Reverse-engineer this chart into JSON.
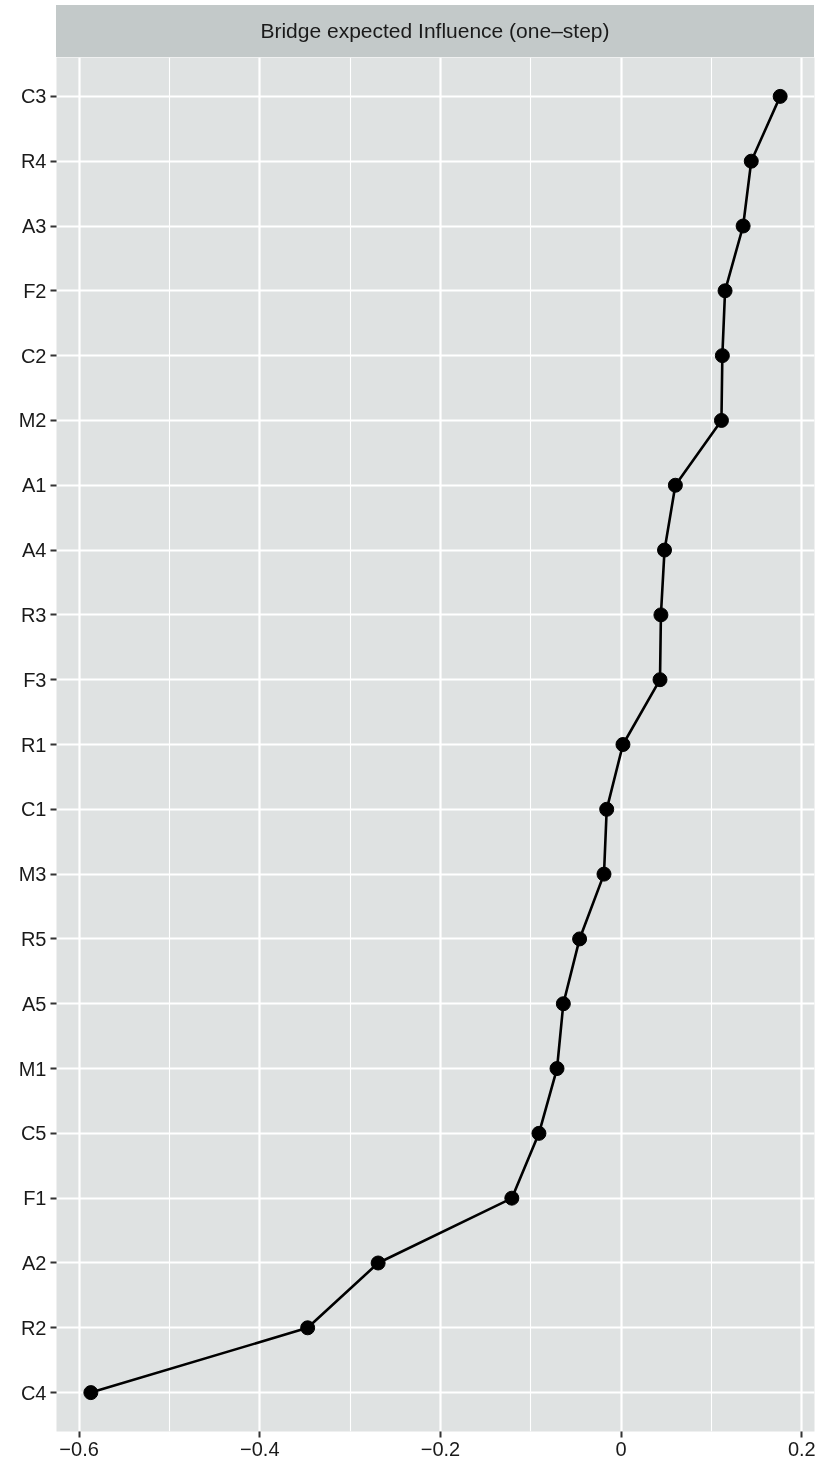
{
  "chart_data": {
    "type": "line",
    "title": "Bridge expected Influence (one–step)",
    "orientation": "horizontal",
    "categories": [
      "C3",
      "R4",
      "A3",
      "F2",
      "C2",
      "M2",
      "A1",
      "A4",
      "R3",
      "F3",
      "R1",
      "C1",
      "M3",
      "R5",
      "A5",
      "M1",
      "C5",
      "F1",
      "A2",
      "R2",
      "C4"
    ],
    "values": [
      0.176,
      0.144,
      0.135,
      0.115,
      0.112,
      0.111,
      0.06,
      0.048,
      0.044,
      0.043,
      0.002,
      -0.016,
      -0.019,
      -0.046,
      -0.064,
      -0.071,
      -0.091,
      -0.121,
      -0.269,
      -0.347,
      -0.587
    ],
    "color": "#000000",
    "marker": "circle",
    "xlim": [
      -0.625,
      0.214
    ],
    "xticks": [
      {
        "value": -0.6,
        "label": "−0.6"
      },
      {
        "value": -0.4,
        "label": "−0.4"
      },
      {
        "value": -0.2,
        "label": "−0.2"
      },
      0,
      0.2
    ],
    "grid": true
  }
}
